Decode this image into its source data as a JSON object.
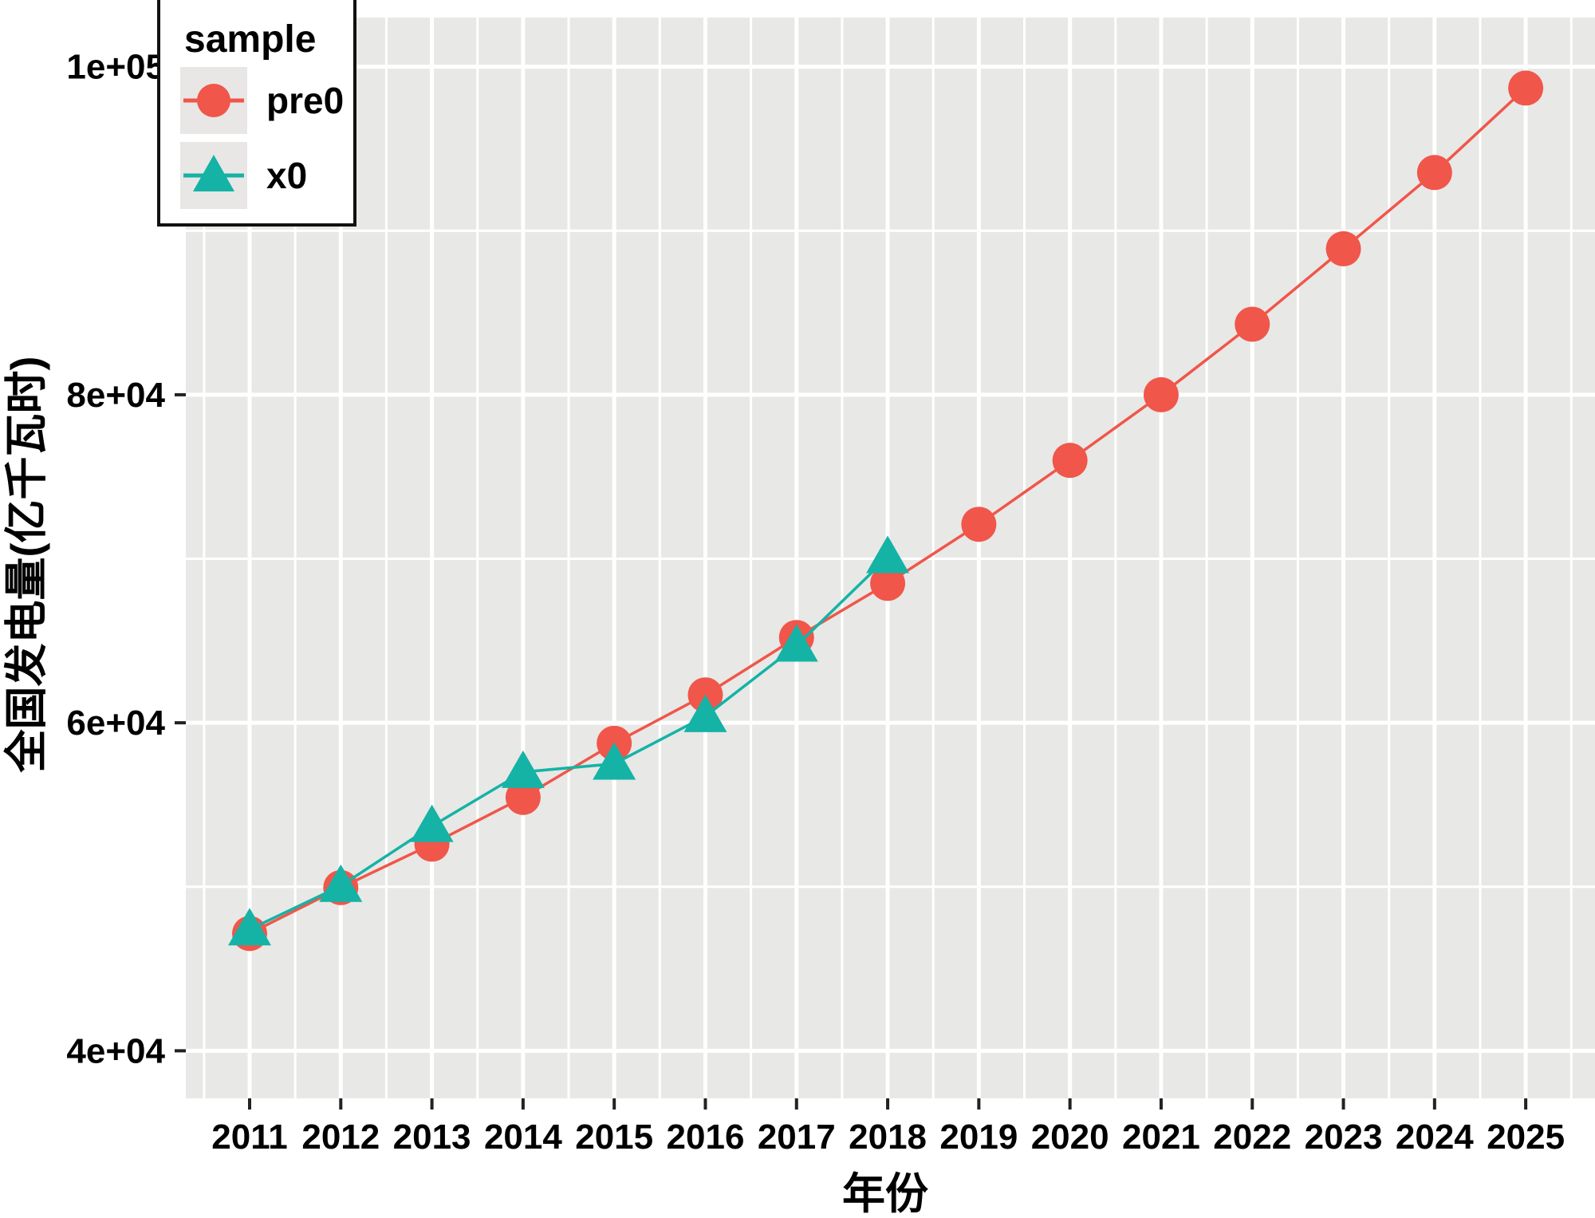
{
  "figure": {
    "background": "#ffffff",
    "panel_bg": "#e8e8e6",
    "grid_color": "#ffffff",
    "tick_color": "#222222",
    "text_color": "#000000"
  },
  "legend": {
    "title": "sample",
    "items": [
      {
        "label": "pre0",
        "marker": "circle",
        "color": "#f0564a"
      },
      {
        "label": "x0",
        "marker": "triangle",
        "color": "#14b3a5"
      }
    ]
  },
  "axes": {
    "x": {
      "title": "年份",
      "tick_labels": [
        "2011",
        "2012",
        "2013",
        "2014",
        "2015",
        "2016",
        "2017",
        "2018",
        "2019",
        "2020",
        "2021",
        "2022",
        "2023",
        "2024",
        "2025"
      ]
    },
    "y": {
      "title": "全国发电量(亿千瓦时)",
      "tick_labels": [
        "4e+04",
        "6e+04",
        "8e+04",
        "1e+05"
      ],
      "tick_values": [
        40000,
        60000,
        80000,
        100000
      ]
    }
  },
  "chart_data": {
    "type": "line",
    "title": "",
    "xlabel": "年份",
    "ylabel": "全国发电量(亿千瓦时)",
    "x": [
      2011,
      2012,
      2013,
      2014,
      2015,
      2016,
      2017,
      2018,
      2019,
      2020,
      2021,
      2022,
      2023,
      2024,
      2025
    ],
    "series": [
      {
        "name": "pre0",
        "marker": "circle",
        "color": "#f0564a",
        "values": [
          47150,
          49950,
          52600,
          55450,
          58750,
          61700,
          65200,
          68500,
          72100,
          76000,
          80000,
          84300,
          88900,
          93550,
          98700
        ]
      },
      {
        "name": "x0",
        "marker": "triangle",
        "color": "#14b3a5",
        "values": [
          47400,
          50050,
          53700,
          57000,
          57500,
          60400,
          64700,
          70100
        ]
      }
    ],
    "xlim": [
      2010.3,
      2025.76
    ],
    "ylim": [
      37100,
      103000
    ],
    "y_major": [
      40000,
      60000,
      80000,
      100000
    ],
    "y_minor": [
      50000,
      70000,
      90000
    ],
    "x_minor_step": 0.5,
    "grid": true,
    "legend_position": "top-left-inside"
  }
}
